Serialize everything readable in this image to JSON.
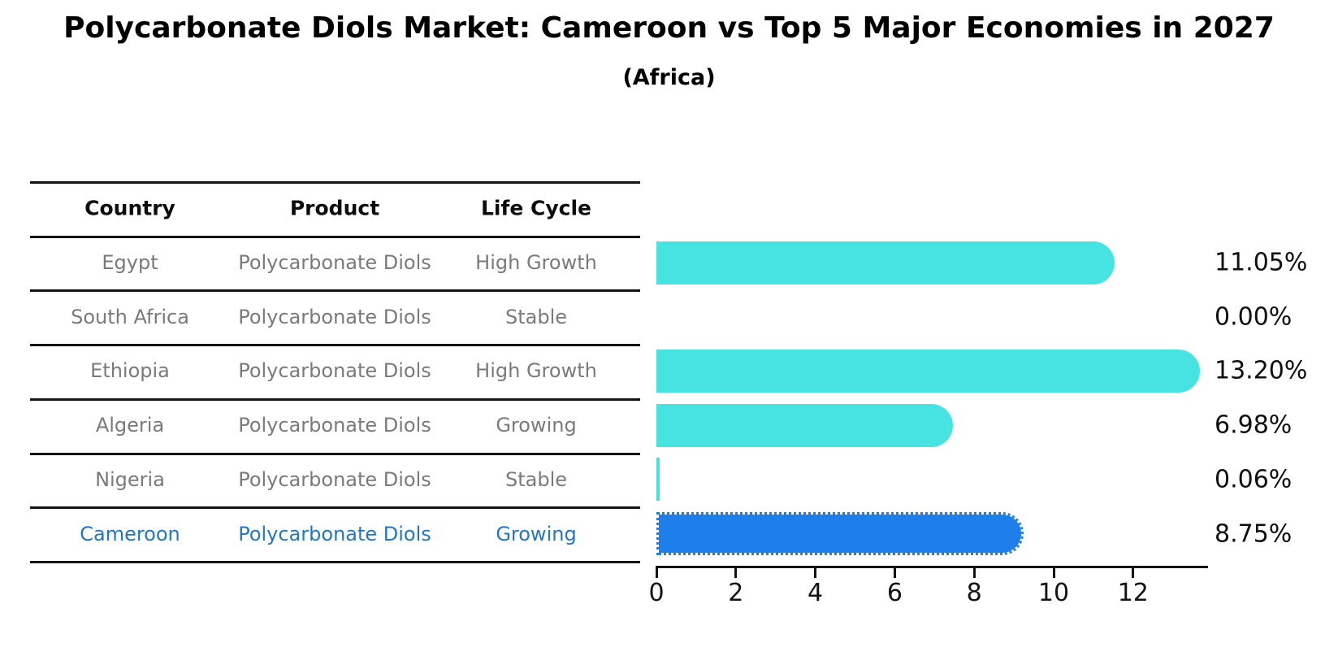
{
  "title": "Polycarbonate Diols Market: Cameroon vs Top 5 Major Economies in 2027",
  "subtitle": "(Africa)",
  "table": {
    "headers": [
      "Country",
      "Product",
      "Life Cycle"
    ],
    "rows": [
      {
        "country": "Egypt",
        "product": "Polycarbonate Diols",
        "life_cycle": "High Growth",
        "highlight": false
      },
      {
        "country": "South Africa",
        "product": "Polycarbonate Diols",
        "life_cycle": "Stable",
        "highlight": false
      },
      {
        "country": "Ethiopia",
        "product": "Polycarbonate Diols",
        "life_cycle": "High Growth",
        "highlight": false
      },
      {
        "country": "Algeria",
        "product": "Polycarbonate Diols",
        "life_cycle": "Growing",
        "highlight": false
      },
      {
        "country": "Nigeria",
        "product": "Polycarbonate Diols",
        "life_cycle": "Stable",
        "highlight": false
      },
      {
        "country": "Cameroon",
        "product": "Polycarbonate Diols",
        "life_cycle": "Growing",
        "highlight": true
      }
    ]
  },
  "chart_data": {
    "type": "bar",
    "orientation": "horizontal",
    "title": "Polycarbonate Diols Market: Cameroon vs Top 5 Major Economies in 2027 (Africa)",
    "categories": [
      "Egypt",
      "South Africa",
      "Ethiopia",
      "Algeria",
      "Nigeria",
      "Cameroon"
    ],
    "values": [
      11.05,
      0.0,
      13.2,
      6.98,
      0.06,
      8.75
    ],
    "value_labels": [
      "11.05%",
      "0.00%",
      "13.20%",
      "6.98%",
      "0.06%",
      "8.75%"
    ],
    "highlight_index": 5,
    "x_ticks": [
      0,
      2,
      4,
      6,
      8,
      10,
      12
    ],
    "xlim": [
      0,
      13.88
    ],
    "grid": false,
    "legend": null,
    "bar_color": "#47e3e0",
    "highlight_color": "#1e7feb",
    "highlight_text_color": "#2077c8",
    "text_color": "#7a7a7a"
  }
}
